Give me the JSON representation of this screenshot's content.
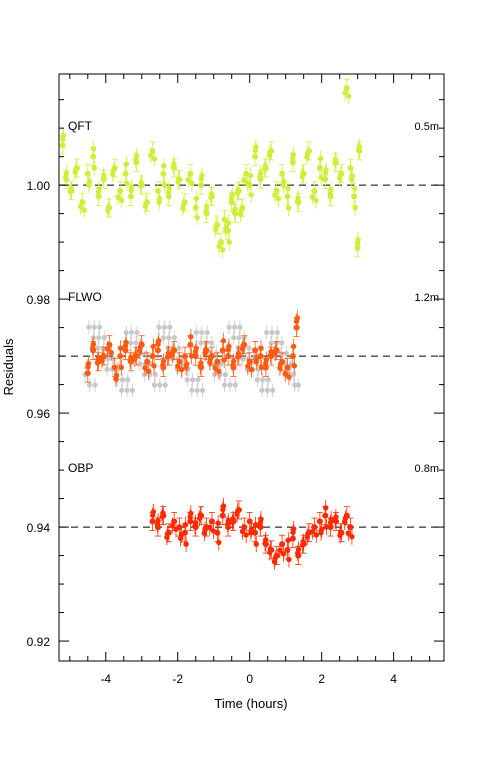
{
  "chart_data": {
    "type": "scatter",
    "title": "",
    "xlabel": "Time (hours)",
    "ylabel": "Residuals",
    "xlim": [
      -5.3,
      5.4
    ],
    "ylim": [
      0.9165,
      1.0195
    ],
    "xticks": [
      -4,
      -2,
      0,
      2,
      4
    ],
    "xtick_labels": [
      "-4",
      "-2",
      "0",
      "2",
      "4"
    ],
    "yticks": [
      0.92,
      0.94,
      0.96,
      0.98,
      1.0
    ],
    "ytick_labels": [
      "0.92",
      "0.94",
      "0.96",
      "0.98",
      "1.00"
    ],
    "grid": false,
    "legend": "none",
    "panels": [
      {
        "label": "QFT",
        "aperture": "0.5m",
        "baseline": 1.0,
        "color": "#ccf03a",
        "x": [
          -5.2,
          -5.1,
          -4.95,
          -4.8,
          -4.65,
          -4.5,
          -4.35,
          -4.2,
          -4.05,
          -3.9,
          -3.75,
          -3.6,
          -3.45,
          -3.3,
          -3.15,
          -3.0,
          -2.85,
          -2.7,
          -2.55,
          -2.4,
          -2.25,
          -2.1,
          -1.95,
          -1.8,
          -1.65,
          -1.5,
          -1.35,
          -1.2,
          -1.05,
          -0.9,
          -0.8,
          -0.7,
          -0.6,
          -0.5,
          -0.4,
          -0.3,
          -0.2,
          -0.1,
          0.0,
          0.15,
          0.3,
          0.45,
          0.6,
          0.75,
          0.9,
          1.05,
          1.2,
          1.35,
          1.5,
          1.65,
          1.8,
          1.95,
          2.1,
          2.25,
          2.4,
          2.55,
          2.7,
          2.8,
          2.9,
          3.0,
          3.05
        ],
        "y": [
          1.007,
          1.001,
          0.999,
          1.003,
          0.997,
          1.002,
          1.005,
          0.998,
          1.001,
          0.996,
          1.003,
          0.999,
          1.002,
          0.998,
          1.004,
          1.0,
          0.997,
          1.006,
          0.999,
          1.002,
          0.998,
          1.003,
          1.001,
          0.997,
          1.002,
          0.996,
          1.0,
          0.995,
          0.998,
          0.993,
          0.99,
          0.994,
          0.992,
          0.997,
          0.995,
          0.999,
          0.996,
          1.002,
          1.0,
          1.005,
          1.001,
          1.003,
          1.006,
          0.999,
          1.002,
          0.998,
          1.004,
          0.997,
          1.002,
          1.006,
          0.999,
          1.003,
          1.001,
          0.998,
          1.004,
          1.002,
          1.017,
          1.003,
          0.998,
          0.989,
          1.006
        ]
      },
      {
        "label": "FLWO",
        "aperture": "1.2m",
        "baseline": 0.97,
        "color_binned": "#ff5a14",
        "color_raw": "#c8c8c8",
        "x": [
          -4.5,
          -4.35,
          -4.2,
          -4.05,
          -3.9,
          -3.75,
          -3.6,
          -3.45,
          -3.3,
          -3.15,
          -3.0,
          -2.85,
          -2.7,
          -2.55,
          -2.4,
          -2.25,
          -2.1,
          -1.95,
          -1.8,
          -1.65,
          -1.5,
          -1.35,
          -1.2,
          -1.05,
          -0.9,
          -0.75,
          -0.6,
          -0.45,
          -0.3,
          -0.15,
          0.0,
          0.15,
          0.3,
          0.45,
          0.6,
          0.75,
          0.9,
          1.05,
          1.2,
          1.3
        ],
        "y": [
          0.967,
          0.971,
          0.969,
          0.97,
          0.972,
          0.968,
          0.97,
          0.971,
          0.969,
          0.97,
          0.972,
          0.969,
          0.97,
          0.971,
          0.968,
          0.97,
          0.971,
          0.969,
          0.97,
          0.972,
          0.97,
          0.968,
          0.971,
          0.97,
          0.969,
          0.971,
          0.97,
          0.968,
          0.97,
          0.972,
          0.969,
          0.971,
          0.97,
          0.968,
          0.97,
          0.971,
          0.969,
          0.968,
          0.97,
          0.975
        ]
      },
      {
        "label": "OBP",
        "aperture": "0.8m",
        "baseline": 0.94,
        "color": "#ff2a00",
        "x": [
          -2.7,
          -2.55,
          -2.4,
          -2.25,
          -2.1,
          -1.95,
          -1.8,
          -1.65,
          -1.5,
          -1.35,
          -1.2,
          -1.05,
          -0.9,
          -0.75,
          -0.6,
          -0.45,
          -0.3,
          -0.15,
          0.0,
          0.15,
          0.3,
          0.45,
          0.6,
          0.75,
          0.9,
          1.05,
          1.2,
          1.35,
          1.5,
          1.65,
          1.8,
          1.95,
          2.1,
          2.25,
          2.4,
          2.55,
          2.7,
          2.8
        ],
        "y": [
          0.941,
          0.94,
          0.942,
          0.939,
          0.941,
          0.94,
          0.939,
          0.941,
          0.94,
          0.942,
          0.94,
          0.941,
          0.939,
          0.942,
          0.94,
          0.941,
          0.943,
          0.94,
          0.941,
          0.939,
          0.94,
          0.937,
          0.936,
          0.935,
          0.937,
          0.936,
          0.938,
          0.935,
          0.937,
          0.939,
          0.94,
          0.941,
          0.942,
          0.94,
          0.941,
          0.939,
          0.942,
          0.94
        ]
      }
    ]
  }
}
